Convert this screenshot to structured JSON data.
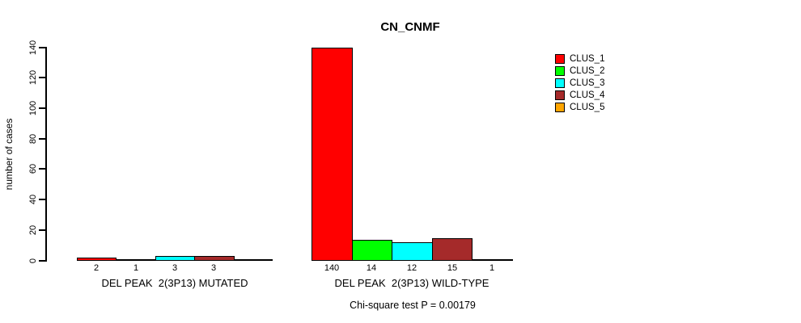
{
  "chart_data": {
    "type": "bar",
    "title": "CN_CNMF",
    "ylabel": "number of cases",
    "ylim": [
      0,
      140
    ],
    "yticks": [
      0,
      20,
      40,
      60,
      80,
      100,
      120,
      140
    ],
    "grid": false,
    "legend_position": "top-right",
    "legend": [
      {
        "name": "CLUS_1",
        "color": "#FF0000"
      },
      {
        "name": "CLUS_2",
        "color": "#00FF00"
      },
      {
        "name": "CLUS_3",
        "color": "#00FFFF"
      },
      {
        "name": "CLUS_4",
        "color": "#A52A2A"
      },
      {
        "name": "CLUS_5",
        "color": "#FFA500"
      }
    ],
    "groups": [
      {
        "label": "DEL PEAK  2(3P13) MUTATED",
        "values": [
          2,
          1,
          3,
          3,
          0
        ],
        "bar_labels": [
          "2",
          "1",
          "3",
          "3",
          ""
        ]
      },
      {
        "label": "DEL PEAK  2(3P13) WILD-TYPE",
        "values": [
          140,
          14,
          12,
          15,
          1
        ],
        "bar_labels": [
          "140",
          "14",
          "12",
          "15",
          "1"
        ]
      }
    ],
    "annotation": "Chi-square test P = 0.00179"
  }
}
